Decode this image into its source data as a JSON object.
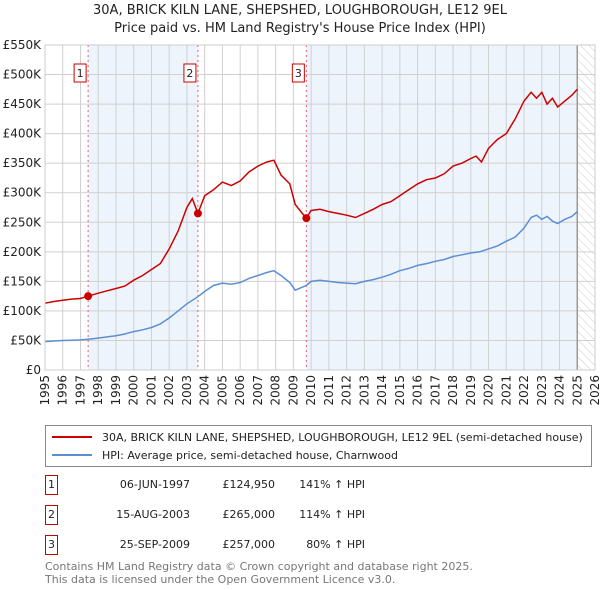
{
  "chart_data": {
    "type": "line",
    "title": "30A, BRICK KILN LANE, SHEPSHED, LOUGHBOROUGH, LE12 9EL",
    "subtitle": "Price paid vs. HM Land Registry's House Price Index (HPI)",
    "xlim": [
      1995,
      2026
    ],
    "ylim": [
      0,
      550000
    ],
    "x_ticks": [
      "1995",
      "1996",
      "1997",
      "1998",
      "1999",
      "2000",
      "2001",
      "2002",
      "2003",
      "2004",
      "2005",
      "2006",
      "2007",
      "2008",
      "2009",
      "2010",
      "2011",
      "2012",
      "2013",
      "2014",
      "2015",
      "2016",
      "2017",
      "2018",
      "2019",
      "2020",
      "2021",
      "2022",
      "2023",
      "2024",
      "2025",
      "2026"
    ],
    "y_ticks": [
      {
        "v": 0,
        "l": "£0"
      },
      {
        "v": 50000,
        "l": "£50K"
      },
      {
        "v": 100000,
        "l": "£100K"
      },
      {
        "v": 150000,
        "l": "£150K"
      },
      {
        "v": 200000,
        "l": "£200K"
      },
      {
        "v": 250000,
        "l": "£250K"
      },
      {
        "v": 300000,
        "l": "£300K"
      },
      {
        "v": 350000,
        "l": "£350K"
      },
      {
        "v": 400000,
        "l": "£400K"
      },
      {
        "v": 450000,
        "l": "£450K"
      },
      {
        "v": 500000,
        "l": "£500K"
      },
      {
        "v": 550000,
        "l": "£550K"
      }
    ],
    "grid": true,
    "series": [
      {
        "name": "30A, BRICK KILN LANE, SHEPSHED, LOUGHBOROUGH, LE12 9EL (semi-detached house)",
        "color": "#cc0000",
        "x": [
          1995,
          1995.5,
          1996,
          1996.5,
          1997,
          1997.43,
          1998,
          1998.5,
          1999,
          1999.5,
          2000,
          2000.5,
          2001,
          2001.5,
          2002,
          2002.5,
          2003,
          2003.3,
          2003.62,
          2004,
          2004.5,
          2005,
          2005.5,
          2006,
          2006.5,
          2007,
          2007.5,
          2007.9,
          2008.3,
          2008.8,
          2009.1,
          2009.5,
          2009.73,
          2010,
          2010.5,
          2011,
          2011.5,
          2012,
          2012.5,
          2013,
          2013.5,
          2014,
          2014.5,
          2015,
          2015.5,
          2016,
          2016.5,
          2017,
          2017.5,
          2018,
          2018.5,
          2019,
          2019.3,
          2019.6,
          2020,
          2020.5,
          2021,
          2021.5,
          2022,
          2022.4,
          2022.7,
          2023,
          2023.3,
          2023.6,
          2023.9,
          2024.3,
          2024.7,
          2025
        ],
        "y": [
          113000,
          116000,
          118000,
          120000,
          121000,
          124950,
          130000,
          134000,
          138000,
          142000,
          152000,
          160000,
          170000,
          180000,
          205000,
          235000,
          275000,
          290000,
          265000,
          295000,
          305000,
          318000,
          312000,
          320000,
          335000,
          345000,
          352000,
          355000,
          330000,
          315000,
          280000,
          265000,
          257000,
          270000,
          272000,
          268000,
          265000,
          262000,
          258000,
          265000,
          272000,
          280000,
          285000,
          295000,
          305000,
          315000,
          322000,
          325000,
          332000,
          345000,
          350000,
          358000,
          362000,
          352000,
          375000,
          390000,
          400000,
          425000,
          455000,
          470000,
          460000,
          470000,
          450000,
          460000,
          445000,
          455000,
          465000,
          475000
        ]
      },
      {
        "name": "HPI: Average price, semi-detached house, Charnwood",
        "color": "#5b8fd4",
        "x": [
          1995,
          1995.5,
          1996,
          1996.5,
          1997,
          1997.43,
          1998,
          1998.5,
          1999,
          1999.5,
          2000,
          2000.5,
          2001,
          2001.5,
          2002,
          2002.5,
          2003,
          2003.62,
          2004,
          2004.5,
          2005,
          2005.5,
          2006,
          2006.5,
          2007,
          2007.5,
          2007.9,
          2008.3,
          2008.8,
          2009.1,
          2009.73,
          2010,
          2010.5,
          2011,
          2011.5,
          2012,
          2012.5,
          2013,
          2013.5,
          2014,
          2014.5,
          2015,
          2015.5,
          2016,
          2016.5,
          2017,
          2017.5,
          2018,
          2018.5,
          2019,
          2019.5,
          2020,
          2020.5,
          2021,
          2021.5,
          2022,
          2022.4,
          2022.7,
          2023,
          2023.3,
          2023.6,
          2023.9,
          2024.3,
          2024.7,
          2025
        ],
        "y": [
          48000,
          49000,
          50000,
          50500,
          51000,
          52000,
          54000,
          56000,
          58000,
          61000,
          65000,
          68000,
          72000,
          78000,
          88000,
          100000,
          112000,
          124000,
          133000,
          143000,
          147000,
          145000,
          148000,
          155000,
          160000,
          165000,
          168000,
          160000,
          148000,
          135000,
          143000,
          150000,
          152000,
          150000,
          148000,
          147000,
          146000,
          150000,
          153000,
          157000,
          162000,
          168000,
          172000,
          177000,
          180000,
          184000,
          187000,
          192000,
          195000,
          198000,
          200000,
          205000,
          210000,
          218000,
          225000,
          240000,
          258000,
          262000,
          255000,
          260000,
          252000,
          248000,
          255000,
          260000,
          268000
        ]
      }
    ],
    "sales": [
      {
        "label": "1",
        "date": "06-JUN-1997",
        "x": 1997.43,
        "price": 124950,
        "price_label": "£124,950",
        "hpi": "141% ↑ HPI"
      },
      {
        "label": "2",
        "date": "15-AUG-2003",
        "x": 2003.62,
        "price": 265000,
        "price_label": "£265,000",
        "hpi": "114% ↑ HPI"
      },
      {
        "label": "3",
        "date": "25-SEP-2009",
        "x": 2009.73,
        "price": 257000,
        "price_label": "£257,000",
        "hpi": "80% ↑ HPI"
      }
    ],
    "data_end": 2025
  },
  "footer": {
    "line1": "Contains HM Land Registry data © Crown copyright and database right 2025.",
    "line2": "This data is licensed under the Open Government Licence v3.0."
  }
}
